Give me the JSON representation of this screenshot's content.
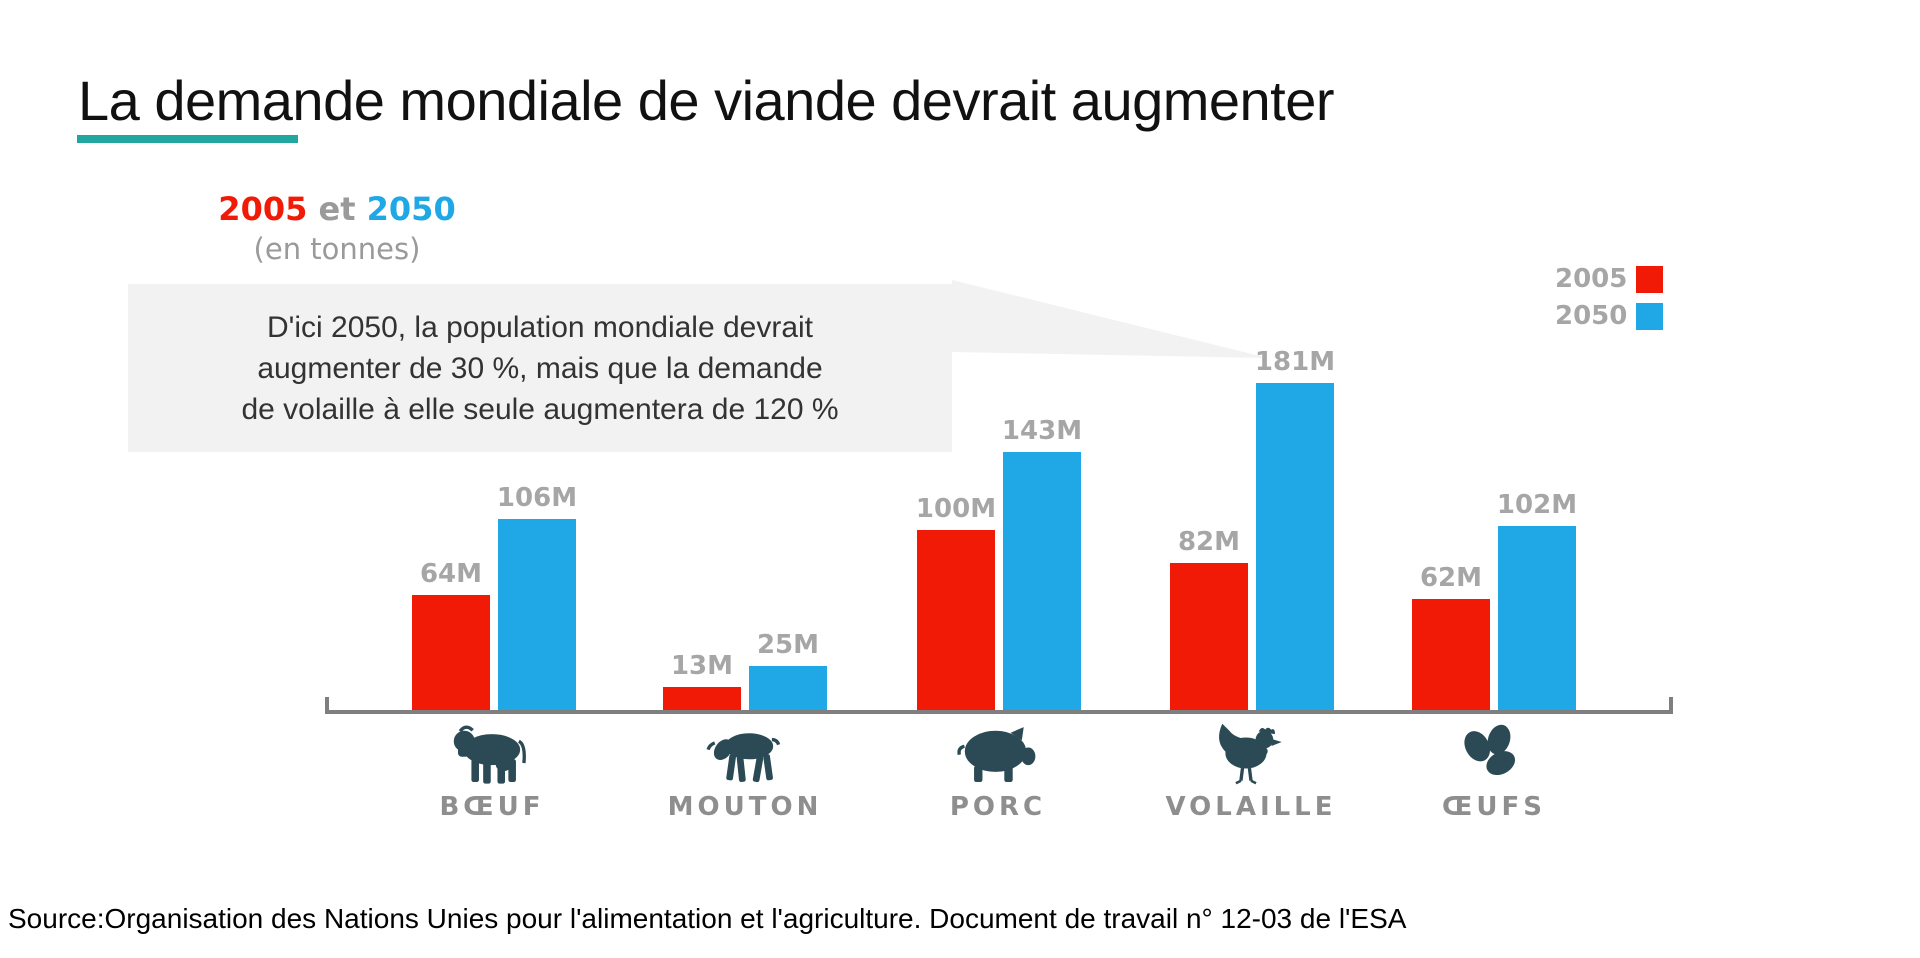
{
  "title": "La demande mondiale de viande devrait augmenter",
  "subtitle": {
    "year1": "2005",
    "connector": " et ",
    "year2": "2050",
    "unit": "(en tonnes)"
  },
  "annotation": {
    "lines": [
      "D'ici 2050, la population mondiale devrait",
      "augmenter de 30 %, mais que la demande",
      "de volaille à elle seule augmentera de 120 %"
    ]
  },
  "legend": {
    "position": "top-right",
    "items": [
      {
        "label": "2005",
        "color": "#f11a07"
      },
      {
        "label": "2050",
        "color": "#20a8e6"
      }
    ]
  },
  "chart_data": {
    "type": "bar",
    "title": "La demande mondiale de viande devrait augmenter",
    "subtitle": "2005 et 2050 (en tonnes)",
    "unit": "tonnes (millions)",
    "categories": [
      "BŒUF",
      "MOUTON",
      "PORC",
      "VOLAILLE",
      "ŒUFS"
    ],
    "series": [
      {
        "name": "2005",
        "color": "#f11a07",
        "values": [
          64,
          13,
          100,
          82,
          62
        ]
      },
      {
        "name": "2050",
        "color": "#20a8e6",
        "values": [
          106,
          25,
          143,
          181,
          102
        ]
      }
    ],
    "value_labels": [
      [
        "64M",
        "106M"
      ],
      [
        "13M",
        "25M"
      ],
      [
        "100M",
        "143M"
      ],
      [
        "82M",
        "181M"
      ],
      [
        "62M",
        "102M"
      ]
    ],
    "ylim": [
      0,
      200
    ],
    "grid": false,
    "legend_position": "top-right",
    "icons": [
      "cow-icon",
      "sheep-icon",
      "pig-icon",
      "hen-icon",
      "eggs-icon"
    ]
  },
  "colors": {
    "accent_teal": "#21a79f",
    "red_2005": "#f11a07",
    "blue_2050": "#20a8e6",
    "icon_dark": "#2b4a55",
    "value_label_gray": "#a6a6a6",
    "category_label_gray": "#8e8e8e",
    "axis_gray": "#7f7f7f",
    "annotation_bg": "#f2f2f2"
  },
  "source": "Source:Organisation des Nations Unies pour l'alimentation et l'agriculture. Document de travail n° 12-03 de l'ESA"
}
